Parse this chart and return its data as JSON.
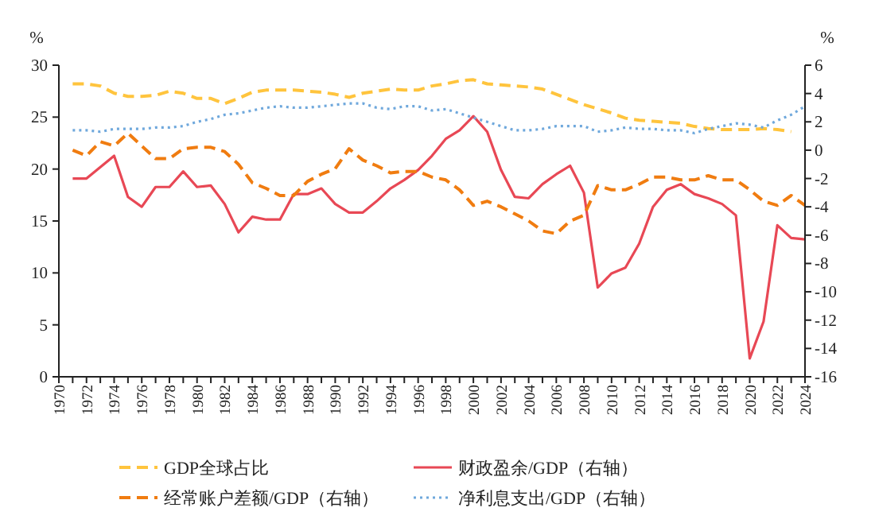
{
  "chart_data": {
    "type": "line",
    "ylabel": "%",
    "y2label": "%",
    "x": [
      1971,
      1972,
      1973,
      1974,
      1975,
      1976,
      1977,
      1978,
      1979,
      1980,
      1981,
      1982,
      1983,
      1984,
      1985,
      1986,
      1987,
      1988,
      1989,
      1990,
      1991,
      1992,
      1993,
      1994,
      1995,
      1996,
      1997,
      1998,
      1999,
      2000,
      2001,
      2002,
      2003,
      2004,
      2005,
      2006,
      2007,
      2008,
      2009,
      2010,
      2011,
      2012,
      2013,
      2014,
      2015,
      2016,
      2017,
      2018,
      2019,
      2020,
      2021,
      2022,
      2023,
      2024
    ],
    "xlim": [
      1970,
      2024
    ],
    "xticks": [
      1970,
      {
        "value": 1971,
        "label": null
      },
      1972,
      {
        "value": 1973,
        "label": null
      },
      1974,
      {
        "value": 1975,
        "label": null
      },
      1976,
      {
        "value": 1977,
        "label": null
      },
      1978,
      {
        "value": 1979,
        "label": null
      },
      1980,
      {
        "value": 1981,
        "label": null
      },
      1982,
      {
        "value": 1983,
        "label": null
      },
      1984,
      {
        "value": 1985,
        "label": null
      },
      1986,
      {
        "value": 1987,
        "label": null
      },
      1988,
      {
        "value": 1989,
        "label": null
      },
      1990,
      {
        "value": 1991,
        "label": null
      },
      1992,
      {
        "value": 1993,
        "label": null
      },
      1994,
      {
        "value": 1995,
        "label": null
      },
      1996,
      {
        "value": 1997,
        "label": null
      },
      1998,
      {
        "value": 1999,
        "label": null
      },
      2000,
      {
        "value": 2001,
        "label": null
      },
      2002,
      {
        "value": 2003,
        "label": null
      },
      2004,
      {
        "value": 2005,
        "label": null
      },
      2006,
      {
        "value": 2007,
        "label": null
      },
      2008,
      {
        "value": 2009,
        "label": null
      },
      2010,
      {
        "value": 2011,
        "label": null
      },
      2012,
      {
        "value": 2013,
        "label": null
      },
      2014,
      {
        "value": 2015,
        "label": null
      },
      2016,
      {
        "value": 2017,
        "label": null
      },
      2018,
      {
        "value": 2019,
        "label": null
      },
      2020,
      {
        "value": 2021,
        "label": null
      },
      2022,
      {
        "value": 2023,
        "label": null
      },
      2024
    ],
    "ylim": [
      0,
      30
    ],
    "yticks": [
      0,
      5,
      10,
      15,
      20,
      25,
      30
    ],
    "y2lim": [
      -16,
      6
    ],
    "y2ticks": [
      -16,
      -14,
      -12,
      -10,
      -8,
      -6,
      -4,
      -2,
      0,
      2,
      4,
      6
    ],
    "legend": "bottom",
    "grid": false,
    "series": [
      {
        "name": "GDP全球占比",
        "color": "#ffc43d",
        "line_style": "dashed",
        "x": [
          1971,
          1972,
          1973,
          1974,
          1975,
          1976,
          1977,
          1978,
          1979,
          1980,
          1981,
          1982,
          1983,
          1984,
          1985,
          1986,
          1987,
          1988,
          1989,
          1990,
          1991,
          1992,
          1993,
          1994,
          1995,
          1996,
          1997,
          1998,
          1999,
          2000,
          2001,
          2002,
          2003,
          2004,
          2005,
          2006,
          2007,
          2008,
          2009,
          2010,
          2011,
          2012,
          2013,
          2014,
          2015,
          2016,
          2017,
          2018,
          2019,
          2020,
          2021,
          2022,
          2023
        ],
        "values": [
          28.2,
          28.2,
          28.0,
          27.3,
          27.0,
          27.0,
          27.1,
          27.5,
          27.3,
          26.8,
          26.8,
          26.3,
          26.8,
          27.4,
          27.6,
          27.6,
          27.6,
          27.5,
          27.4,
          27.2,
          26.9,
          27.3,
          27.5,
          27.7,
          27.6,
          27.6,
          28.0,
          28.2,
          28.5,
          28.6,
          28.2,
          28.1,
          28.0,
          27.9,
          27.7,
          27.2,
          26.7,
          26.2,
          25.8,
          25.4,
          24.9,
          24.7,
          24.6,
          24.5,
          24.4,
          24.1,
          23.9,
          23.8,
          23.8,
          23.8,
          23.9,
          23.8,
          23.6
        ]
      },
      {
        "name": "财政盈余/GDP（右轴）",
        "color": "#e84855",
        "line_style": "solid",
        "axis": "y2",
        "values": [
          -2.0,
          -2.0,
          -1.2,
          -0.4,
          -3.3,
          -4.0,
          -2.6,
          -2.6,
          -1.5,
          -2.6,
          -2.5,
          -3.8,
          -5.8,
          -4.7,
          -4.9,
          -4.9,
          -3.1,
          -3.1,
          -2.7,
          -3.8,
          -4.4,
          -4.4,
          -3.6,
          -2.7,
          -2.1,
          -1.4,
          -0.4,
          0.8,
          1.4,
          2.4,
          1.3,
          -1.4,
          -3.3,
          -3.4,
          -2.4,
          -1.7,
          -1.1,
          -3.0,
          -9.7,
          -8.7,
          -8.3,
          -6.6,
          -4.0,
          -2.8,
          -2.4,
          -3.1,
          -3.4,
          -3.8,
          -4.6,
          -14.7,
          -12.1,
          -5.3,
          -6.2,
          -6.3
        ]
      },
      {
        "name": "经常账户差额/GDP（右轴）",
        "color": "#f07c10",
        "line_style": "dashed",
        "axis": "y2",
        "values": [
          0.0,
          -0.4,
          0.6,
          0.3,
          1.2,
          0.3,
          -0.6,
          -0.6,
          0.1,
          0.2,
          0.2,
          -0.1,
          -1.0,
          -2.3,
          -2.7,
          -3.2,
          -3.2,
          -2.2,
          -1.7,
          -1.3,
          0.1,
          -0.7,
          -1.1,
          -1.6,
          -1.5,
          -1.5,
          -1.9,
          -2.1,
          -2.8,
          -3.9,
          -3.6,
          -4.0,
          -4.5,
          -5.0,
          -5.7,
          -5.9,
          -5.0,
          -4.6,
          -2.5,
          -2.8,
          -2.8,
          -2.4,
          -1.9,
          -1.9,
          -2.1,
          -2.1,
          -1.8,
          -2.1,
          -2.1,
          -2.8,
          -3.6,
          -3.9,
          -3.2,
          -3.9
        ]
      },
      {
        "name": "净利息支出/GDP（右轴）",
        "color": "#6fa8dc",
        "line_style": "dotted",
        "axis": "y2",
        "values": [
          1.4,
          1.4,
          1.3,
          1.5,
          1.5,
          1.5,
          1.6,
          1.6,
          1.7,
          2.0,
          2.2,
          2.5,
          2.6,
          2.8,
          3.0,
          3.1,
          3.0,
          3.0,
          3.1,
          3.2,
          3.3,
          3.3,
          3.0,
          2.9,
          3.1,
          3.1,
          2.8,
          2.9,
          2.6,
          2.3,
          2.0,
          1.7,
          1.4,
          1.4,
          1.5,
          1.7,
          1.7,
          1.7,
          1.3,
          1.4,
          1.6,
          1.5,
          1.5,
          1.4,
          1.4,
          1.2,
          1.5,
          1.7,
          1.9,
          1.8,
          1.6,
          2.1,
          2.5,
          3.1
        ]
      }
    ]
  }
}
